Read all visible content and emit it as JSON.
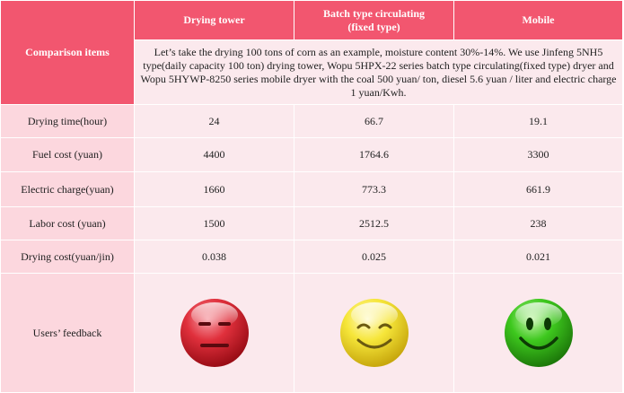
{
  "header": {
    "comparison_items": "Comparison items",
    "col1": "Drying tower",
    "col2_line1": "Batch type circulating",
    "col2_line2": "(fixed type)",
    "col3": "Mobile"
  },
  "note": "Let’s take  the drying 100 tons of corn as an example, moisture content 30%-14%. We use Jinfeng 5NH5 type(daily capacity 100 ton) drying tower, Wopu 5HPX-22 series batch type circulating(fixed type) dryer and Wopu 5HYWP-8250 series mobile dryer with the coal 500 yuan/ ton, diesel 5.6 yuan / liter and electric charge 1 yuan/Kwh.",
  "rows": [
    {
      "label": "Drying time(hour)",
      "values": [
        "24",
        "66.7",
        "19.1"
      ]
    },
    {
      "label": "Fuel cost (yuan)",
      "values": [
        "4400",
        "1764.6",
        "3300"
      ]
    },
    {
      "label": "Electric charge(yuan)",
      "values": [
        "1660",
        "773.3",
        "661.9"
      ]
    },
    {
      "label": "Labor cost (yuan)",
      "values": [
        "1500",
        "2512.5",
        "238"
      ]
    },
    {
      "label": "Drying cost(yuan/jin)",
      "values": [
        "0.038",
        "0.025",
        "0.021"
      ]
    }
  ],
  "feedback": {
    "label": "Users’ feedback",
    "faces": [
      "neutral-red-face-icon",
      "smiling-yellow-face-icon",
      "smiling-green-face-icon"
    ],
    "colors": {
      "red": "#e0303c",
      "yellow": "#f6e63a",
      "green": "#3ec81e"
    }
  },
  "colors": {
    "header": "#f2566f",
    "label_bg": "#fcd7de",
    "cell_bg": "#fbe9ed"
  }
}
